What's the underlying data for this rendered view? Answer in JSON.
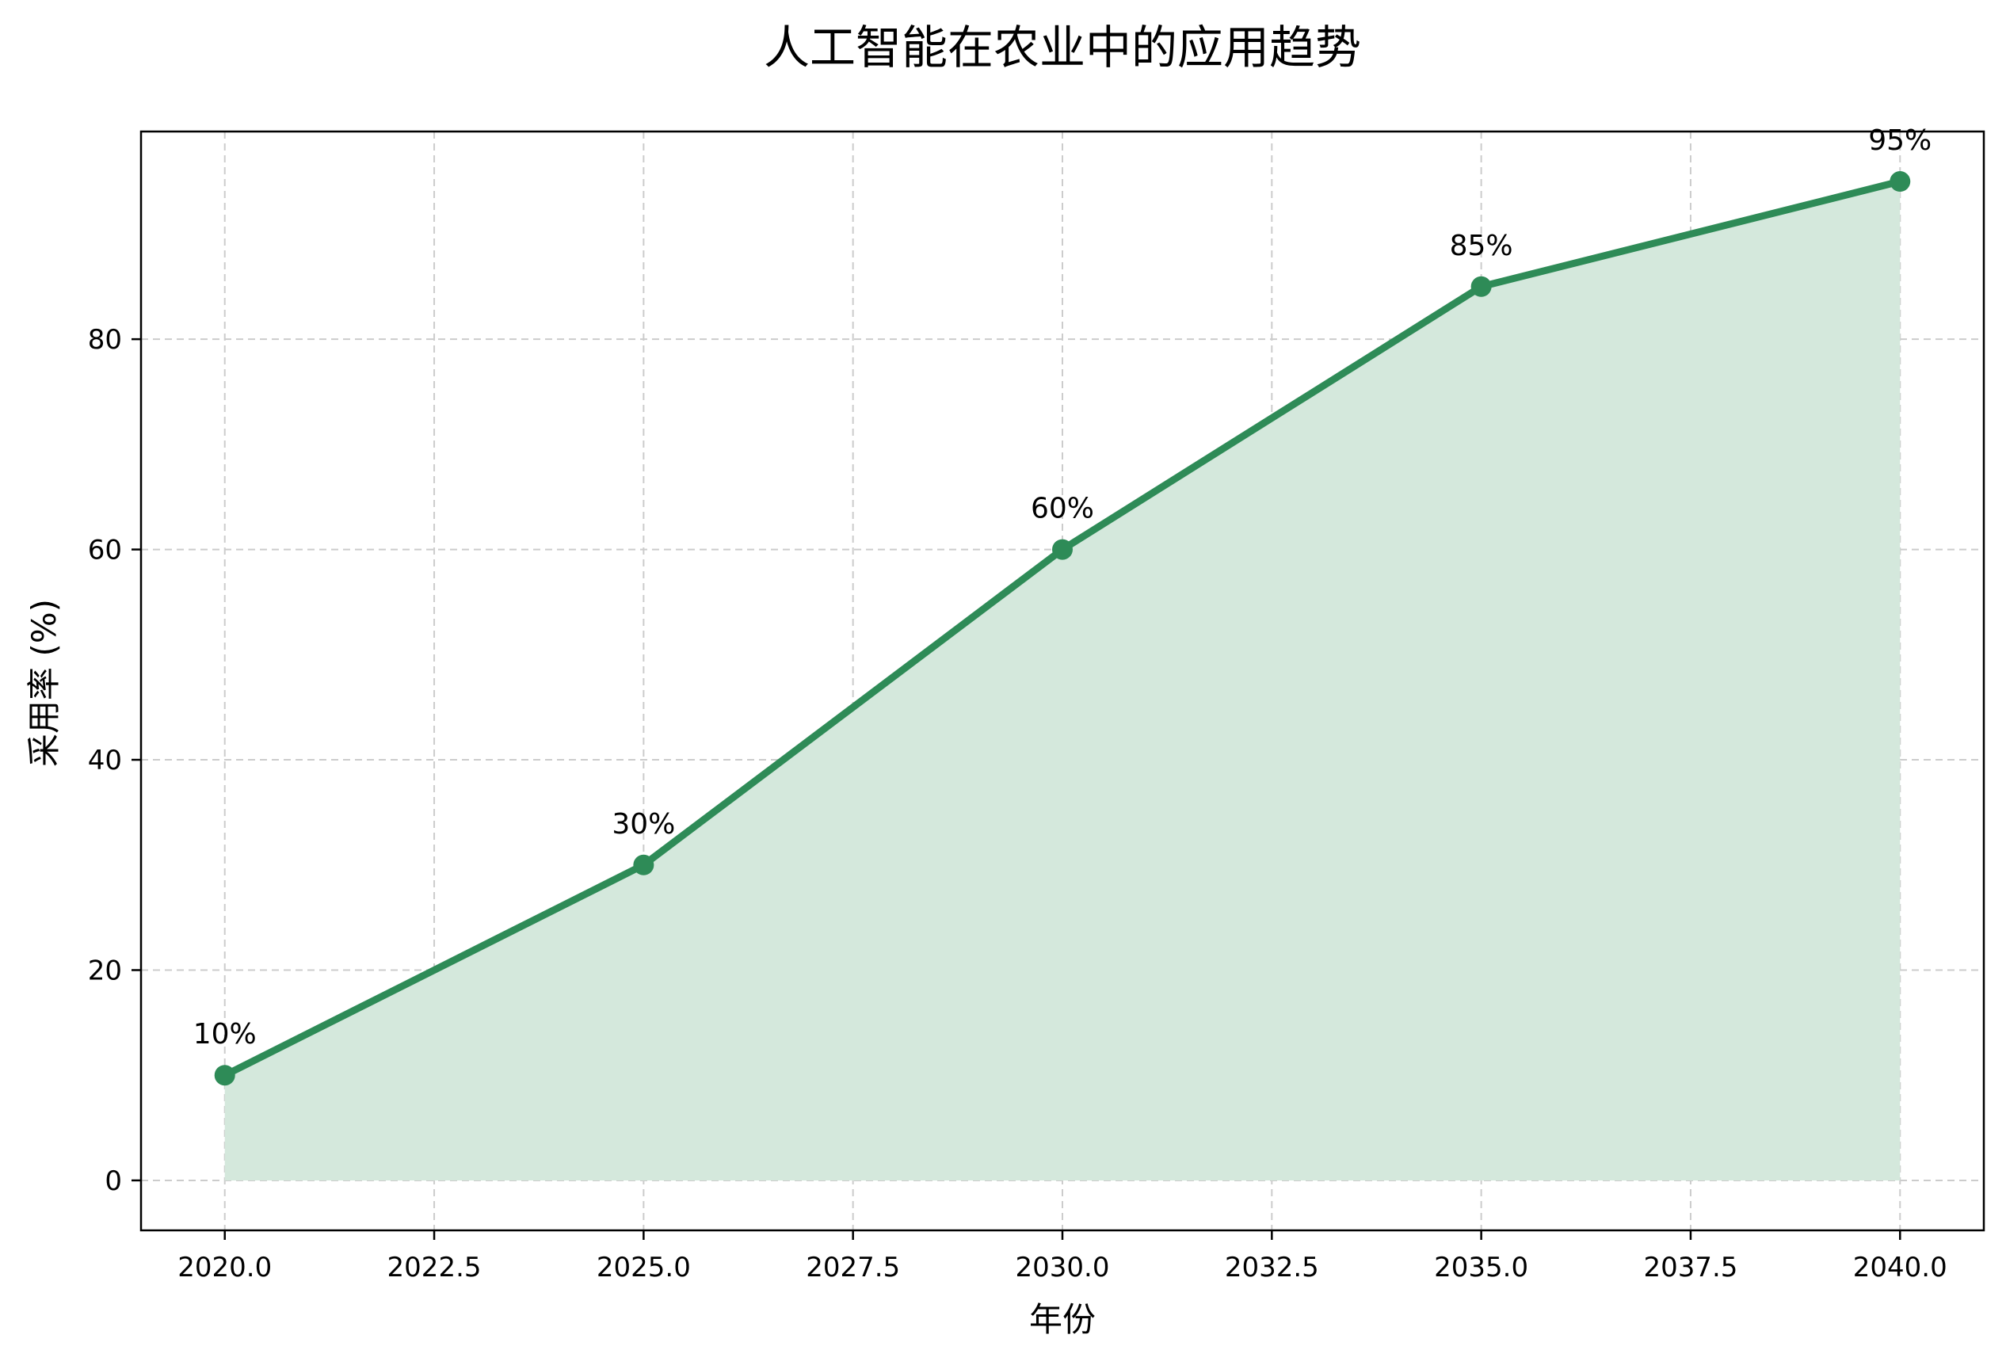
{
  "chart_data": {
    "type": "line",
    "title": "人工智能在农业中的应用趋势",
    "xlabel": "年份",
    "ylabel": "采用率 (%)",
    "x": [
      2020,
      2025,
      2030,
      2035,
      2040
    ],
    "series": [
      {
        "values": [
          10,
          30,
          60,
          85,
          95
        ],
        "data_labels": [
          "10%",
          "30%",
          "60%",
          "85%",
          "95%"
        ]
      }
    ],
    "xlim": [
      2019,
      2041
    ],
    "ylim": [
      -4.75,
      99.75
    ],
    "x_ticks": [
      2020.0,
      2022.5,
      2025.0,
      2027.5,
      2030.0,
      2032.5,
      2035.0,
      2037.5,
      2040.0
    ],
    "x_tick_labels": [
      "2020.0",
      "2022.5",
      "2025.0",
      "2027.5",
      "2030.0",
      "2032.5",
      "2035.0",
      "2037.5",
      "2040.0"
    ],
    "y_ticks": [
      0,
      20,
      40,
      60,
      80
    ],
    "y_tick_labels": [
      "0",
      "20",
      "40",
      "60",
      "80"
    ],
    "grid": true,
    "area_fill": true,
    "colors": {
      "line": "#2e8b57",
      "fill": "#d4e8dc",
      "grid": "#cccccc",
      "axes": "#000000"
    }
  }
}
